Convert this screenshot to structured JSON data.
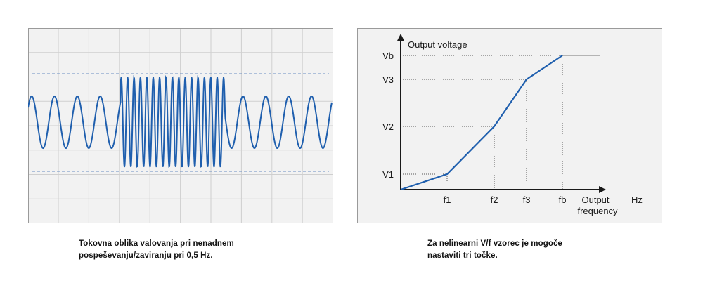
{
  "left_figure": {
    "caption_lines": [
      "Tokovna oblika valovanja pri nenadnem",
      "pospeševanju/zaviranju pri 0,5 Hz."
    ]
  },
  "right_figure": {
    "y_axis_label": "Output voltage",
    "x_axis_label_line1": "Output",
    "x_axis_label_line2": "frequency",
    "x_unit": "Hz",
    "y_ticks": [
      "Vb",
      "V3",
      "V2",
      "V1"
    ],
    "x_ticks": [
      "f1",
      "f2",
      "f3",
      "fb"
    ],
    "caption_lines": [
      "Za nelinearni V/f vzorec je mogoče",
      "nastaviti tri točke."
    ]
  },
  "colors": {
    "waveform": "#1f5fae",
    "axis": "#1a1a1a",
    "grid": "#cfcfcf",
    "panel_bg": "#f2f2f2"
  }
}
